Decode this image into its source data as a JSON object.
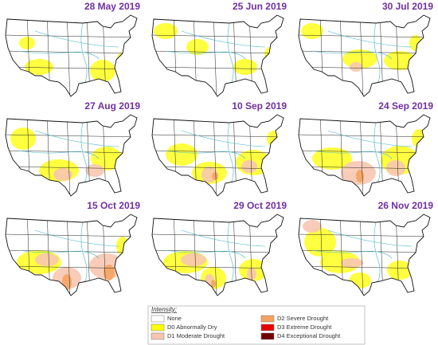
{
  "panels": [
    {
      "title": "28 May 2019"
    },
    {
      "title": "25 Jun 2019"
    },
    {
      "title": "30 Jul 2019"
    },
    {
      "title": "27 Aug 2019"
    },
    {
      "title": "10 Sep 2019"
    },
    {
      "title": "24 Sep 2019"
    },
    {
      "title": "15 Oct 2019"
    },
    {
      "title": "29 Oct 2019"
    },
    {
      "title": "26 Nov 2019"
    }
  ],
  "legend": {
    "title": "Intensity:",
    "items": [
      {
        "label": "None",
        "color": "#ffffff"
      },
      {
        "label": "D0 Abnormally Dry",
        "color": "#ffff00"
      },
      {
        "label": "D1 Moderate Drought",
        "color": "#f7c6b0"
      },
      {
        "label": "D2 Severe Drought",
        "color": "#f4a460"
      },
      {
        "label": "D3 Extreme Drought",
        "color": "#e60000"
      },
      {
        "label": "D4 Exceptional Drought",
        "color": "#730000"
      }
    ]
  }
}
